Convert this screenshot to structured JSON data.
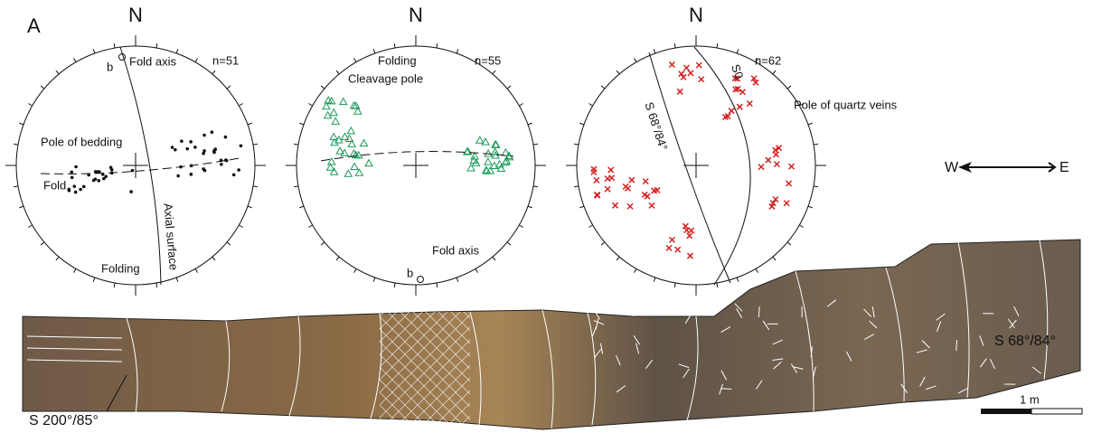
{
  "panel_label": "A",
  "nets": [
    {
      "north": "N",
      "count": "n=51",
      "labels": {
        "b": "b",
        "fold_axis": "Fold axis",
        "pole": "Pole of bedding",
        "fold": "Fold",
        "axial": "Axial surface",
        "folding": "Folding"
      }
    },
    {
      "north": "N",
      "count": "n=55",
      "labels": {
        "folding": "Folding",
        "pole": "Cleavage pole",
        "fold_axis": "Fold axis",
        "b": "b"
      }
    },
    {
      "north": "N",
      "count": "n=62",
      "labels": {
        "s0": "S0",
        "plane": "S 68°/84°",
        "pole": "Pole of quartz veins"
      }
    }
  ],
  "compass": {
    "west": "W",
    "east": "E"
  },
  "section": {
    "left_label": "S 200°/85°",
    "right_label": "S 68°/84°",
    "scale": "1 m"
  }
}
